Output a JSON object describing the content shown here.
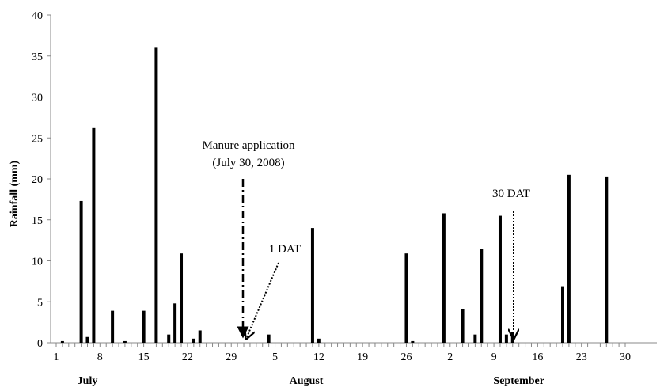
{
  "chart_data": {
    "type": "bar",
    "title": "",
    "xlabel": "",
    "ylabel": "Rainfall (mm)",
    "ylim": [
      0,
      40
    ],
    "yticks": [
      0,
      5,
      10,
      15,
      20,
      25,
      30,
      35,
      40
    ],
    "xlim": [
      1,
      92
    ],
    "grid": false,
    "month_labels": [
      {
        "label": "July",
        "day": 6
      },
      {
        "label": "August",
        "day": 41
      },
      {
        "label": "September",
        "day": 75
      }
    ],
    "x_ticks": [
      {
        "day": 1,
        "label": "1"
      },
      {
        "day": 8,
        "label": "8"
      },
      {
        "day": 15,
        "label": "15"
      },
      {
        "day": 22,
        "label": "22"
      },
      {
        "day": 29,
        "label": "29"
      },
      {
        "day": 36,
        "label": "5"
      },
      {
        "day": 43,
        "label": "12"
      },
      {
        "day": 50,
        "label": "19"
      },
      {
        "day": 57,
        "label": "26"
      },
      {
        "day": 64,
        "label": "2"
      },
      {
        "day": 71,
        "label": "9"
      },
      {
        "day": 78,
        "label": "16"
      },
      {
        "day": 85,
        "label": "23"
      },
      {
        "day": 92,
        "label": "30"
      }
    ],
    "series": [
      {
        "color": "#000000",
        "points": [
          {
            "day": 2,
            "value": 0.2
          },
          {
            "day": 5,
            "value": 17.3
          },
          {
            "day": 6,
            "value": 0.7
          },
          {
            "day": 7,
            "value": 26.2
          },
          {
            "day": 10,
            "value": 3.9
          },
          {
            "day": 12,
            "value": 0.2
          },
          {
            "day": 15,
            "value": 3.9
          },
          {
            "day": 17,
            "value": 36.0
          },
          {
            "day": 19,
            "value": 1.0
          },
          {
            "day": 20,
            "value": 4.8
          },
          {
            "day": 21,
            "value": 10.9
          },
          {
            "day": 23,
            "value": 0.5
          },
          {
            "day": 24,
            "value": 1.5
          },
          {
            "day": 35,
            "value": 1.0
          },
          {
            "day": 42,
            "value": 14.0
          },
          {
            "day": 43,
            "value": 0.5
          },
          {
            "day": 57,
            "value": 10.9
          },
          {
            "day": 58,
            "value": 0.2
          },
          {
            "day": 63,
            "value": 15.8
          },
          {
            "day": 66,
            "value": 4.1
          },
          {
            "day": 68,
            "value": 1.0
          },
          {
            "day": 69,
            "value": 11.4
          },
          {
            "day": 72,
            "value": 15.5
          },
          {
            "day": 73,
            "value": 1.0
          },
          {
            "day": 74,
            "value": 1.3
          },
          {
            "day": 82,
            "value": 6.9
          },
          {
            "day": 83,
            "value": 20.5
          },
          {
            "day": 89,
            "value": 20.3
          }
        ]
      }
    ],
    "annotations": [
      {
        "lines": [
          "Manure application",
          "(July 30, 2008)"
        ],
        "arrow_day": 30,
        "style": "dash-dot",
        "direction": "vertical"
      },
      {
        "lines": [
          "1 DAT"
        ],
        "arrow_day": 31,
        "style": "dotted",
        "direction": "diagonal"
      },
      {
        "lines": [
          "30 DAT"
        ],
        "arrow_day": 71,
        "style": "dotted",
        "direction": "vertical"
      }
    ]
  }
}
